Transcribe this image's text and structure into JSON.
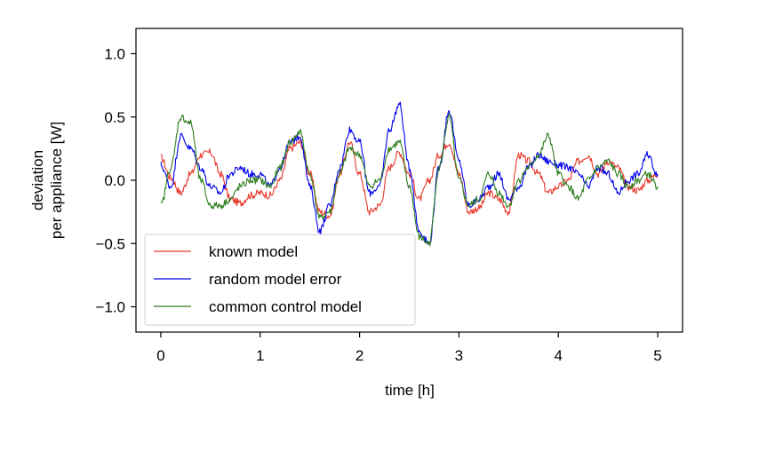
{
  "chart_data": {
    "type": "line",
    "xlabel": "time [h]",
    "ylabel_lines": [
      "deviation",
      "per appliance [W]"
    ],
    "xlim": [
      -0.25,
      5.25
    ],
    "ylim": [
      -1.2,
      1.2
    ],
    "xticks": [
      0,
      1,
      2,
      3,
      4,
      5
    ],
    "xtick_labels": [
      "0",
      "1",
      "2",
      "3",
      "4",
      "5"
    ],
    "yticks": [
      -1.0,
      -0.5,
      0.0,
      0.5,
      1.0
    ],
    "ytick_labels": [
      "−1.0",
      "−0.5",
      "0.0",
      "0.5",
      "1.0"
    ],
    "grid": false,
    "legend_position": "lower-left",
    "series": [
      {
        "name": "known model",
        "color": "#e8382b",
        "x": [
          0,
          0.1,
          0.2,
          0.3,
          0.4,
          0.5,
          0.6,
          0.7,
          0.8,
          0.9,
          1.0,
          1.1,
          1.2,
          1.3,
          1.4,
          1.5,
          1.6,
          1.7,
          1.8,
          1.9,
          2.0,
          2.1,
          2.2,
          2.3,
          2.4,
          2.5,
          2.6,
          2.7,
          2.8,
          2.9,
          3.0,
          3.1,
          3.2,
          3.3,
          3.4,
          3.5,
          3.6,
          3.7,
          3.8,
          3.9,
          4.0,
          4.1,
          4.2,
          4.3,
          4.4,
          4.5,
          4.6,
          4.7,
          4.8,
          4.9,
          5.0
        ],
        "y": [
          0.18,
          0.02,
          -0.1,
          0.05,
          0.2,
          0.22,
          0.05,
          -0.15,
          -0.18,
          -0.12,
          -0.1,
          -0.12,
          0.0,
          0.25,
          0.3,
          0.05,
          -0.25,
          -0.28,
          0.05,
          0.3,
          0.05,
          -0.25,
          -0.2,
          0.1,
          0.22,
          0.05,
          -0.15,
          0.0,
          0.2,
          0.3,
          0.05,
          -0.25,
          -0.22,
          -0.1,
          -0.15,
          -0.25,
          0.2,
          0.15,
          0.05,
          -0.1,
          -0.05,
          0.0,
          0.15,
          0.2,
          0.05,
          0.15,
          0.1,
          -0.05,
          -0.08,
          0.0,
          0.05
        ]
      },
      {
        "name": "random model error",
        "color": "#0000ee",
        "x": [
          0,
          0.1,
          0.2,
          0.3,
          0.4,
          0.5,
          0.6,
          0.7,
          0.8,
          0.9,
          1.0,
          1.1,
          1.2,
          1.3,
          1.4,
          1.5,
          1.6,
          1.7,
          1.8,
          1.9,
          2.0,
          2.1,
          2.2,
          2.3,
          2.4,
          2.5,
          2.6,
          2.7,
          2.8,
          2.9,
          3.0,
          3.1,
          3.2,
          3.3,
          3.4,
          3.5,
          3.6,
          3.7,
          3.8,
          3.9,
          4.0,
          4.1,
          4.2,
          4.3,
          4.4,
          4.5,
          4.6,
          4.7,
          4.8,
          4.9,
          5.0
        ],
        "y": [
          0.12,
          -0.05,
          0.35,
          0.25,
          0.1,
          -0.05,
          -0.1,
          0.05,
          0.1,
          0.05,
          0.05,
          -0.05,
          0.1,
          0.3,
          0.35,
          -0.05,
          -0.4,
          -0.2,
          0.1,
          0.4,
          0.3,
          -0.1,
          -0.05,
          0.4,
          0.6,
          0.1,
          -0.4,
          -0.5,
          0.1,
          0.55,
          0.15,
          -0.2,
          -0.15,
          -0.05,
          0.05,
          -0.15,
          -0.05,
          0.1,
          0.2,
          0.15,
          0.12,
          0.1,
          0.05,
          -0.05,
          0.1,
          0.05,
          -0.1,
          0.0,
          0.05,
          0.2,
          0.05
        ]
      },
      {
        "name": "common control model",
        "color": "#2e7d1e",
        "x": [
          0,
          0.1,
          0.2,
          0.3,
          0.4,
          0.5,
          0.6,
          0.7,
          0.8,
          0.9,
          1.0,
          1.1,
          1.2,
          1.3,
          1.4,
          1.5,
          1.6,
          1.7,
          1.8,
          1.9,
          2.0,
          2.1,
          2.2,
          2.3,
          2.4,
          2.5,
          2.6,
          2.7,
          2.8,
          2.9,
          3.0,
          3.1,
          3.2,
          3.3,
          3.4,
          3.5,
          3.6,
          3.7,
          3.8,
          3.9,
          4.0,
          4.1,
          4.2,
          4.3,
          4.4,
          4.5,
          4.6,
          4.7,
          4.8,
          4.9,
          5.0
        ],
        "y": [
          -0.2,
          0.1,
          0.5,
          0.45,
          0.0,
          -0.2,
          -0.2,
          -0.15,
          -0.05,
          0.0,
          0.0,
          -0.05,
          0.1,
          0.3,
          0.38,
          0.05,
          -0.3,
          -0.25,
          0.05,
          0.25,
          0.2,
          -0.05,
          0.0,
          0.25,
          0.3,
          -0.05,
          -0.45,
          -0.5,
          0.1,
          0.5,
          0.0,
          -0.2,
          -0.15,
          0.05,
          -0.1,
          -0.2,
          0.0,
          0.1,
          0.2,
          0.35,
          0.05,
          -0.05,
          -0.15,
          0.0,
          0.1,
          0.15,
          0.05,
          -0.05,
          0.0,
          0.05,
          -0.05
        ]
      }
    ]
  }
}
